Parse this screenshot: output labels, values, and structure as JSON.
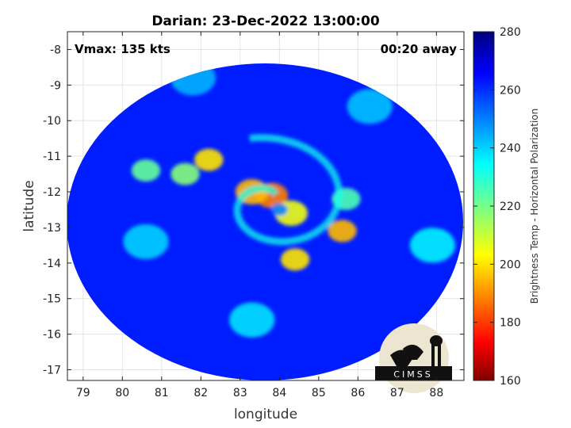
{
  "chart_data": {
    "type": "heatmap",
    "title": "Darian: 23-Dec-2022 13:00:00",
    "xlabel": "longitude",
    "ylabel": "latitude",
    "xlim": [
      78.6,
      88.7
    ],
    "ylim": [
      -17.3,
      -7.5
    ],
    "x_ticks": [
      "79",
      "80",
      "81",
      "82",
      "83",
      "84",
      "85",
      "86",
      "87",
      "88"
    ],
    "y_ticks": [
      "-8",
      "-9",
      "-10",
      "-11",
      "-12",
      "-13",
      "-14",
      "-15",
      "-16",
      "-17"
    ],
    "grid": true,
    "annotations": {
      "vmax": "Vmax: 135 kts",
      "offset": "00:20 away"
    },
    "colorbar": {
      "label": "Brightness Temp - Horizontal Polarization",
      "range": [
        160,
        280
      ],
      "ticks": [
        "280",
        "260",
        "240",
        "220",
        "200",
        "180",
        "160"
      ],
      "colormap": "jet"
    },
    "storm_center": {
      "lon": 83.8,
      "lat": -12.3
    },
    "swath_background_value": 262,
    "features": [
      {
        "label": "eyewall",
        "lon": 83.8,
        "lat": -12.1,
        "value": 188
      },
      {
        "label": "eyewall",
        "lon": 83.3,
        "lat": -12.0,
        "value": 195
      },
      {
        "label": "eyewall",
        "lon": 84.3,
        "lat": -12.6,
        "value": 205
      },
      {
        "label": "rainband",
        "lon": 82.2,
        "lat": -11.1,
        "value": 200
      },
      {
        "label": "rainband",
        "lon": 81.6,
        "lat": -11.5,
        "value": 218
      },
      {
        "label": "rainband",
        "lon": 80.6,
        "lat": -11.4,
        "value": 222
      },
      {
        "label": "rainband",
        "lon": 84.4,
        "lat": -13.9,
        "value": 200
      },
      {
        "label": "rainband",
        "lon": 85.6,
        "lat": -13.1,
        "value": 195
      },
      {
        "label": "rainband",
        "lon": 85.7,
        "lat": -12.2,
        "value": 225
      },
      {
        "label": "eye",
        "lon": 84.0,
        "lat": -12.5,
        "value": 250
      },
      {
        "label": "outer band",
        "lon": 83.3,
        "lat": -15.6,
        "value": 238
      },
      {
        "label": "outer band",
        "lon": 80.6,
        "lat": -13.4,
        "value": 240
      },
      {
        "label": "outer band",
        "lon": 87.9,
        "lat": -13.5,
        "value": 236
      },
      {
        "label": "outer band",
        "lon": 86.3,
        "lat": -9.6,
        "value": 242
      },
      {
        "label": "outer band",
        "lon": 81.8,
        "lat": -8.8,
        "value": 244
      }
    ]
  },
  "logo": {
    "text": "CIMSS"
  }
}
